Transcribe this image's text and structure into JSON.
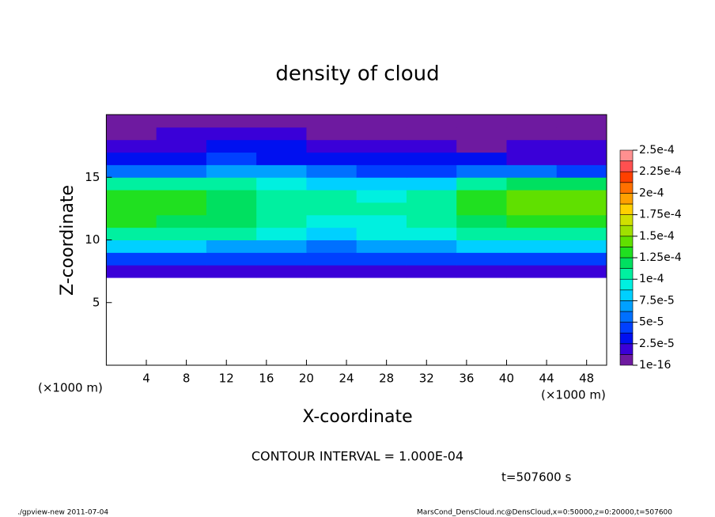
{
  "chart_data": {
    "type": "heatmap",
    "title": "density of cloud",
    "x_label": "X-coordinate",
    "y_label": "Z-coordinate",
    "x_unit": "(×1000 m)",
    "y_unit": "(×1000 m)",
    "contour_note": "CONTOUR INTERVAL = 1.000E-04",
    "time_note": "t=507600 s",
    "footer_left": "./gpview-new  2011-07-04",
    "footer_right": "MarsCond_DensCloud.nc@DensCloud,x=0:50000,z=0:20000,t=507600",
    "xlim": [
      0,
      50
    ],
    "ylim": [
      0,
      20
    ],
    "xticks": [
      4,
      8,
      12,
      16,
      20,
      24,
      28,
      32,
      36,
      40,
      44,
      48
    ],
    "yticks": [
      5,
      10,
      15
    ],
    "x": [
      2.5,
      7.5,
      12.5,
      17.5,
      22.5,
      27.5,
      32.5,
      37.5,
      42.5,
      47.5
    ],
    "y": [
      0.5,
      1.5,
      2.5,
      3.5,
      4.5,
      5.5,
      6.5,
      7.5,
      8.5,
      9.5,
      10.5,
      11.5,
      12.5,
      13.5,
      14.5,
      15.5,
      16.5,
      17.5,
      18.5,
      19.5
    ],
    "values": [
      [
        null,
        null,
        null,
        null,
        null,
        null,
        null,
        null,
        null,
        null
      ],
      [
        null,
        null,
        null,
        null,
        null,
        null,
        null,
        null,
        null,
        null
      ],
      [
        null,
        null,
        null,
        null,
        null,
        null,
        null,
        null,
        null,
        null
      ],
      [
        null,
        null,
        null,
        null,
        null,
        null,
        null,
        null,
        null,
        null
      ],
      [
        null,
        null,
        null,
        null,
        null,
        null,
        null,
        null,
        null,
        null
      ],
      [
        null,
        null,
        null,
        null,
        null,
        null,
        null,
        null,
        null,
        null
      ],
      [
        null,
        null,
        null,
        null,
        null,
        null,
        null,
        null,
        null,
        null
      ],
      [
        1.5e-05,
        1.5e-05,
        1.5e-05,
        1.5e-05,
        1.5e-05,
        1.5e-05,
        1.5e-05,
        1.5e-05,
        1.5e-05,
        1.5e-05
      ],
      [
        4.5e-05,
        4.5e-05,
        4e-05,
        4e-05,
        4e-05,
        4.5e-05,
        4.5e-05,
        4.5e-05,
        4.5e-05,
        4.5e-05
      ],
      [
        7.5e-05,
        7.5e-05,
        6.5e-05,
        6.5e-05,
        6e-05,
        6.5e-05,
        7e-05,
        7.5e-05,
        7.5e-05,
        7.5e-05
      ],
      [
        0.000105,
        0.000105,
        0.0001,
        9e-05,
        8.5e-05,
        9e-05,
        9.5e-05,
        0.000105,
        0.000105,
        0.000105
      ],
      [
        0.000125,
        0.00012,
        0.000115,
        0.000105,
        9.5e-05,
        9.5e-05,
        0.000105,
        0.00012,
        0.00013,
        0.00013
      ],
      [
        0.000135,
        0.00013,
        0.00012,
        0.00011,
        0.0001,
        0.0001,
        0.000105,
        0.00013,
        0.00014,
        0.00014
      ],
      [
        0.00013,
        0.000125,
        0.00012,
        0.00011,
        0.0001,
        9.5e-05,
        0.0001,
        0.000125,
        0.00014,
        0.00014
      ],
      [
        0.000105,
        0.000105,
        0.0001,
        9.5e-05,
        8e-05,
        7.5e-05,
        8e-05,
        0.000105,
        0.00012,
        0.000115
      ],
      [
        5e-05,
        6e-05,
        7e-05,
        6.5e-05,
        5e-05,
        4e-05,
        4.5e-05,
        6e-05,
        5.5e-05,
        4.5e-05
      ],
      [
        2.5e-05,
        3.5e-05,
        4e-05,
        3.5e-05,
        3e-05,
        2.5e-05,
        2.5e-05,
        2.5e-05,
        2e-05,
        2e-05
      ],
      [
        1.5e-05,
        2e-05,
        2.5e-05,
        2.5e-05,
        1.5e-05,
        1.5e-05,
        1.5e-05,
        1e-05,
        1.5e-05,
        1.5e-05
      ],
      [
        1e-05,
        1.5e-05,
        1.5e-05,
        1.5e-05,
        1e-05,
        1e-05,
        1e-05,
        5e-06,
        1e-05,
        1e-05
      ],
      [
        5e-06,
        1e-05,
        1e-05,
        1e-05,
        1e-05,
        1e-05,
        5e-06,
        5e-06,
        1e-05,
        1e-05
      ]
    ],
    "colorbar": {
      "levels": [
        1e-16,
        1.25e-05,
        2.5e-05,
        3.75e-05,
        5e-05,
        6.25e-05,
        7.5e-05,
        8.75e-05,
        0.0001,
        0.0001125,
        0.000125,
        0.0001375,
        0.00015,
        0.0001625,
        0.000175,
        0.0001875,
        0.0002,
        0.0002125,
        0.000225,
        0.0002375,
        0.00025
      ],
      "colors": [
        "#6e1aa0",
        "#3a00d8",
        "#0010f0",
        "#0040ff",
        "#0070ff",
        "#00a0ff",
        "#00d0ff",
        "#00f0e0",
        "#00f0a0",
        "#00e060",
        "#20e020",
        "#60e000",
        "#a0e000",
        "#d0e000",
        "#ffd000",
        "#ffa000",
        "#ff7000",
        "#ff4000",
        "#ff5050",
        "#ff9090"
      ],
      "ticks": [
        {
          "value": 1e-16,
          "label": "1e-16"
        },
        {
          "value": 2.5e-05,
          "label": "2.5e-5"
        },
        {
          "value": 5e-05,
          "label": "5e-5"
        },
        {
          "value": 7.5e-05,
          "label": "7.5e-5"
        },
        {
          "value": 0.0001,
          "label": "1e-4"
        },
        {
          "value": 0.000125,
          "label": "1.25e-4"
        },
        {
          "value": 0.00015,
          "label": "1.5e-4"
        },
        {
          "value": 0.000175,
          "label": "1.75e-4"
        },
        {
          "value": 0.0002,
          "label": "2e-4"
        },
        {
          "value": 0.000225,
          "label": "2.25e-4"
        },
        {
          "value": 0.00025,
          "label": "2.5e-4"
        }
      ]
    }
  }
}
